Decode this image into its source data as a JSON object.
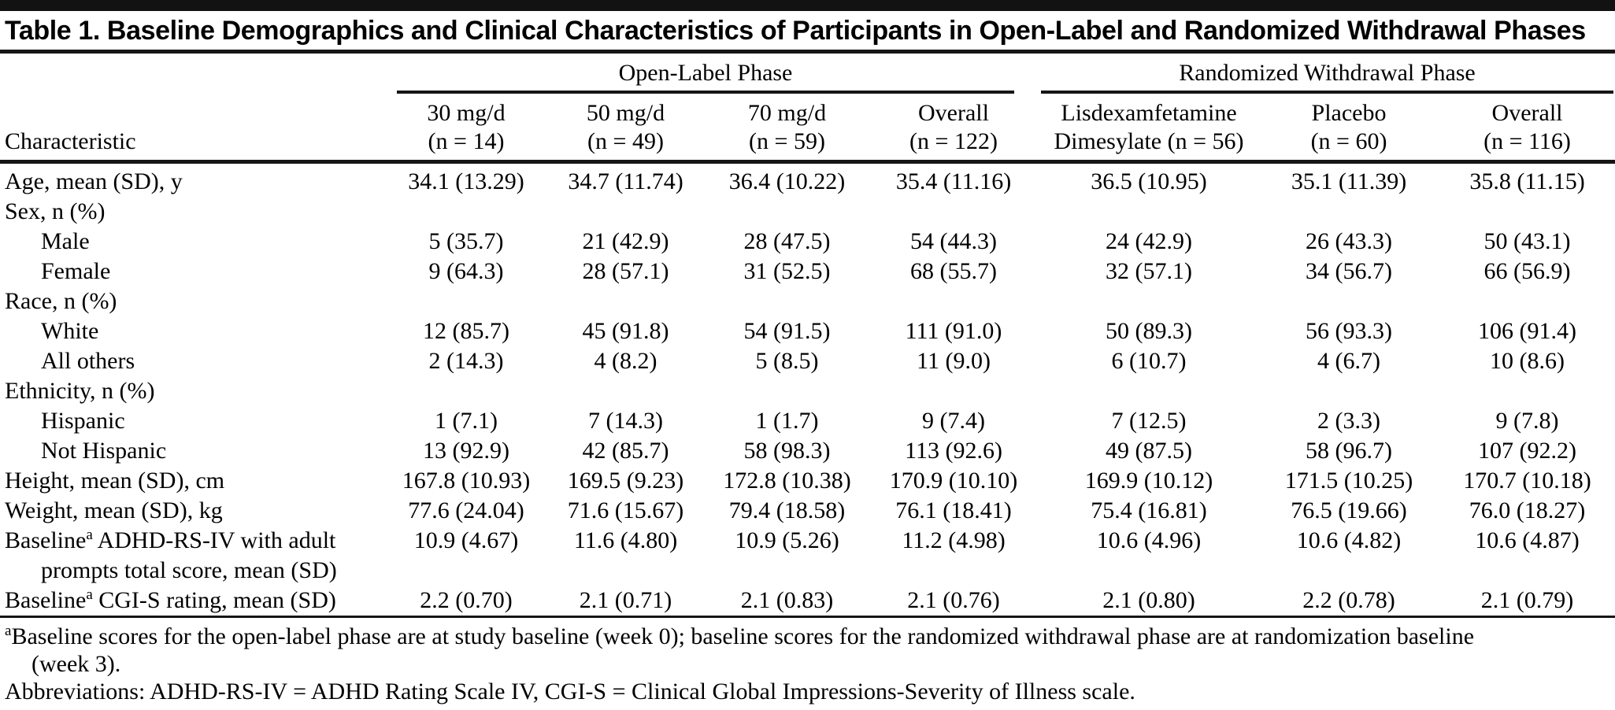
{
  "title": "Table 1. Baseline Demographics and Clinical Characteristics of Participants in Open-Label and Randomized Withdrawal Phases",
  "header": {
    "characteristic": "Characteristic",
    "groups": [
      {
        "label": "Open-Label Phase"
      },
      {
        "label": "Randomized Withdrawal Phase"
      }
    ],
    "columns": [
      {
        "line1": "30 mg/d",
        "line2": "(n = 14)"
      },
      {
        "line1": "50 mg/d",
        "line2": "(n = 49)"
      },
      {
        "line1": "70 mg/d",
        "line2": "(n = 59)"
      },
      {
        "line1": "Overall",
        "line2": "(n = 122)"
      },
      {
        "line1": "Lisdexamfetamine",
        "line2": "Dimesylate (n = 56)"
      },
      {
        "line1": "Placebo",
        "line2": "(n = 60)"
      },
      {
        "line1": "Overall",
        "line2": "(n = 116)"
      }
    ]
  },
  "rows": [
    {
      "label": "Age, mean (SD), y",
      "indent": 0,
      "values": [
        "34.1 (13.29)",
        "34.7 (11.74)",
        "36.4 (10.22)",
        "35.4 (11.16)",
        "36.5 (10.95)",
        "35.1 (11.39)",
        "35.8 (11.15)"
      ]
    },
    {
      "label": "Sex, n (%)",
      "indent": 0,
      "values": [
        "",
        "",
        "",
        "",
        "",
        "",
        ""
      ]
    },
    {
      "label": "Male",
      "indent": 1,
      "values": [
        "5 (35.7)",
        "21 (42.9)",
        "28 (47.5)",
        "54 (44.3)",
        "24 (42.9)",
        "26 (43.3)",
        "50 (43.1)"
      ]
    },
    {
      "label": "Female",
      "indent": 1,
      "values": [
        "9 (64.3)",
        "28 (57.1)",
        "31 (52.5)",
        "68 (55.7)",
        "32 (57.1)",
        "34 (56.7)",
        "66 (56.9)"
      ]
    },
    {
      "label": "Race, n (%)",
      "indent": 0,
      "values": [
        "",
        "",
        "",
        "",
        "",
        "",
        ""
      ]
    },
    {
      "label": "White",
      "indent": 1,
      "values": [
        "12 (85.7)",
        "45 (91.8)",
        "54 (91.5)",
        "111 (91.0)",
        "50 (89.3)",
        "56 (93.3)",
        "106 (91.4)"
      ]
    },
    {
      "label": "All others",
      "indent": 1,
      "values": [
        "2 (14.3)",
        "4 (8.2)",
        "5 (8.5)",
        "11 (9.0)",
        "6 (10.7)",
        "4 (6.7)",
        "10 (8.6)"
      ]
    },
    {
      "label": "Ethnicity, n (%)",
      "indent": 0,
      "values": [
        "",
        "",
        "",
        "",
        "",
        "",
        ""
      ]
    },
    {
      "label": "Hispanic",
      "indent": 1,
      "values": [
        "1 (7.1)",
        "7 (14.3)",
        "1 (1.7)",
        "9 (7.4)",
        "7 (12.5)",
        "2 (3.3)",
        "9 (7.8)"
      ]
    },
    {
      "label": "Not Hispanic",
      "indent": 1,
      "values": [
        "13 (92.9)",
        "42 (85.7)",
        "58 (98.3)",
        "113 (92.6)",
        "49 (87.5)",
        "58 (96.7)",
        "107 (92.2)"
      ]
    },
    {
      "label": "Height, mean (SD), cm",
      "indent": 0,
      "values": [
        "167.8 (10.93)",
        "169.5 (9.23)",
        "172.8 (10.38)",
        "170.9 (10.10)",
        "169.9 (10.12)",
        "171.5 (10.25)",
        "170.7 (10.18)"
      ]
    },
    {
      "label": "Weight, mean (SD), kg",
      "indent": 0,
      "values": [
        "77.6 (24.04)",
        "71.6 (15.67)",
        "79.4 (18.58)",
        "76.1 (18.41)",
        "75.4 (16.81)",
        "76.5 (19.66)",
        "76.0 (18.27)"
      ]
    },
    {
      "label": "Baseline",
      "sup": "a",
      "label_after": " ADHD-RS-IV with adult",
      "label_line2": "prompts total score, mean (SD)",
      "indent": 0,
      "values": [
        "10.9 (4.67)",
        "11.6 (4.80)",
        "10.9 (5.26)",
        "11.2 (4.98)",
        "10.6 (4.96)",
        "10.6 (4.82)",
        "10.6 (4.87)"
      ]
    },
    {
      "label": "Baseline",
      "sup": "a",
      "label_after": " CGI-S rating, mean (SD)",
      "indent": 0,
      "values": [
        "2.2 (0.70)",
        "2.1 (0.71)",
        "2.1 (0.83)",
        "2.1 (0.76)",
        "2.1 (0.80)",
        "2.2 (0.78)",
        "2.1 (0.79)"
      ]
    }
  ],
  "footnotes": {
    "note_a_sup": "a",
    "note_a_text": "Baseline scores for the open-label phase are at study baseline (week 0); baseline scores for the randomized withdrawal phase are at randomization baseline (week 3).",
    "abbreviations": "Abbreviations: ADHD-RS-IV = ADHD Rating Scale IV, CGI-S = Clinical Global Impressions-Severity of Illness scale."
  },
  "colors": {
    "text": "#000000",
    "rule": "#161616",
    "background": "#ffffff"
  }
}
